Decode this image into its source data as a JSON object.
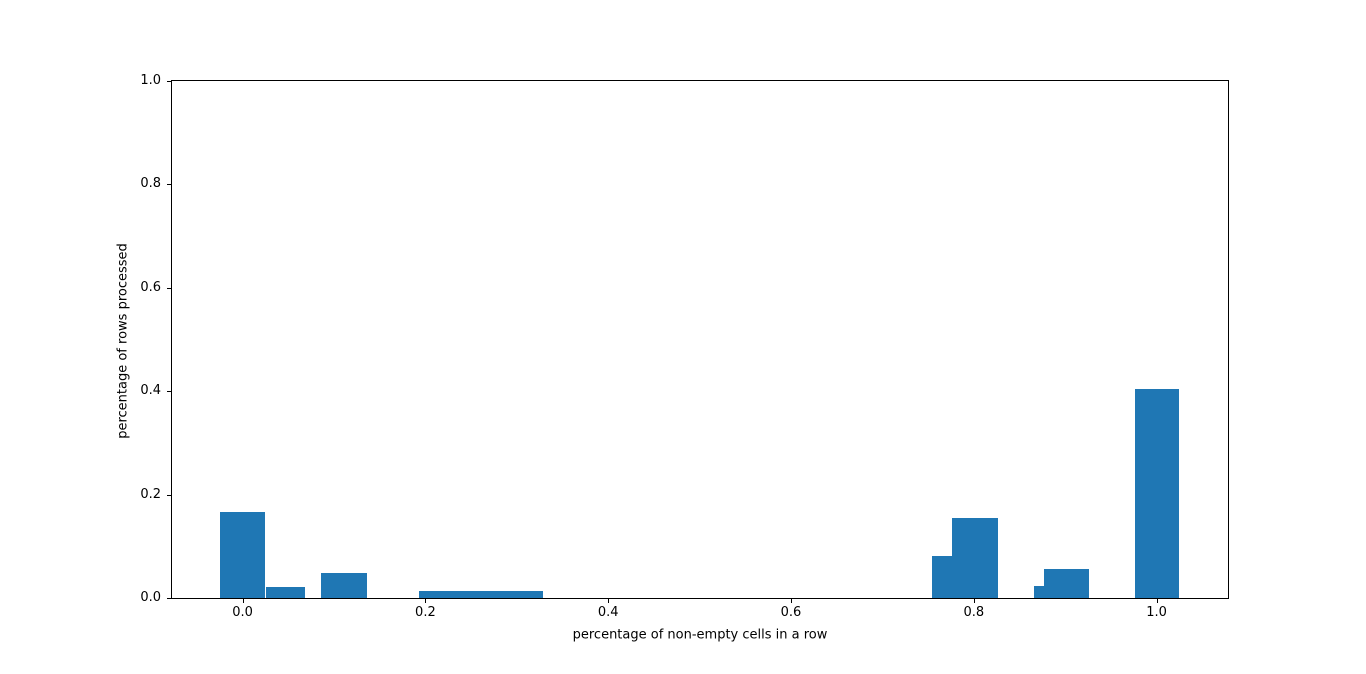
{
  "chart_data": {
    "type": "bar",
    "title": "",
    "xlabel": "percentage of non-empty cells in a row",
    "ylabel": "percentage of rows processed",
    "xlim": [
      -0.0773,
      1.0781
    ],
    "ylim": [
      0,
      1.0
    ],
    "x_ticks": [
      0.0,
      0.2,
      0.4,
      0.6,
      0.8,
      1.0
    ],
    "y_ticks": [
      0.0,
      0.2,
      0.4,
      0.6,
      0.8,
      1.0
    ],
    "tick_decimals": 1,
    "grid": false,
    "legend": false,
    "bar_color": "#1f77b4",
    "axis_color": "#000000",
    "background_color": "#ffffff",
    "bars": [
      {
        "left": -0.025,
        "right": 0.025,
        "height": 0.167
      },
      {
        "left": 0.025,
        "right": 0.068,
        "height": 0.022
      },
      {
        "left": 0.086,
        "right": 0.136,
        "height": 0.048
      },
      {
        "left": 0.193,
        "right": 0.329,
        "height": 0.013
      },
      {
        "left": 0.754,
        "right": 0.776,
        "height": 0.082
      },
      {
        "left": 0.776,
        "right": 0.826,
        "height": 0.154
      },
      {
        "left": 0.866,
        "right": 0.877,
        "height": 0.023
      },
      {
        "left": 0.877,
        "right": 0.926,
        "height": 0.056
      },
      {
        "left": 0.976,
        "right": 1.025,
        "height": 0.404
      }
    ]
  }
}
